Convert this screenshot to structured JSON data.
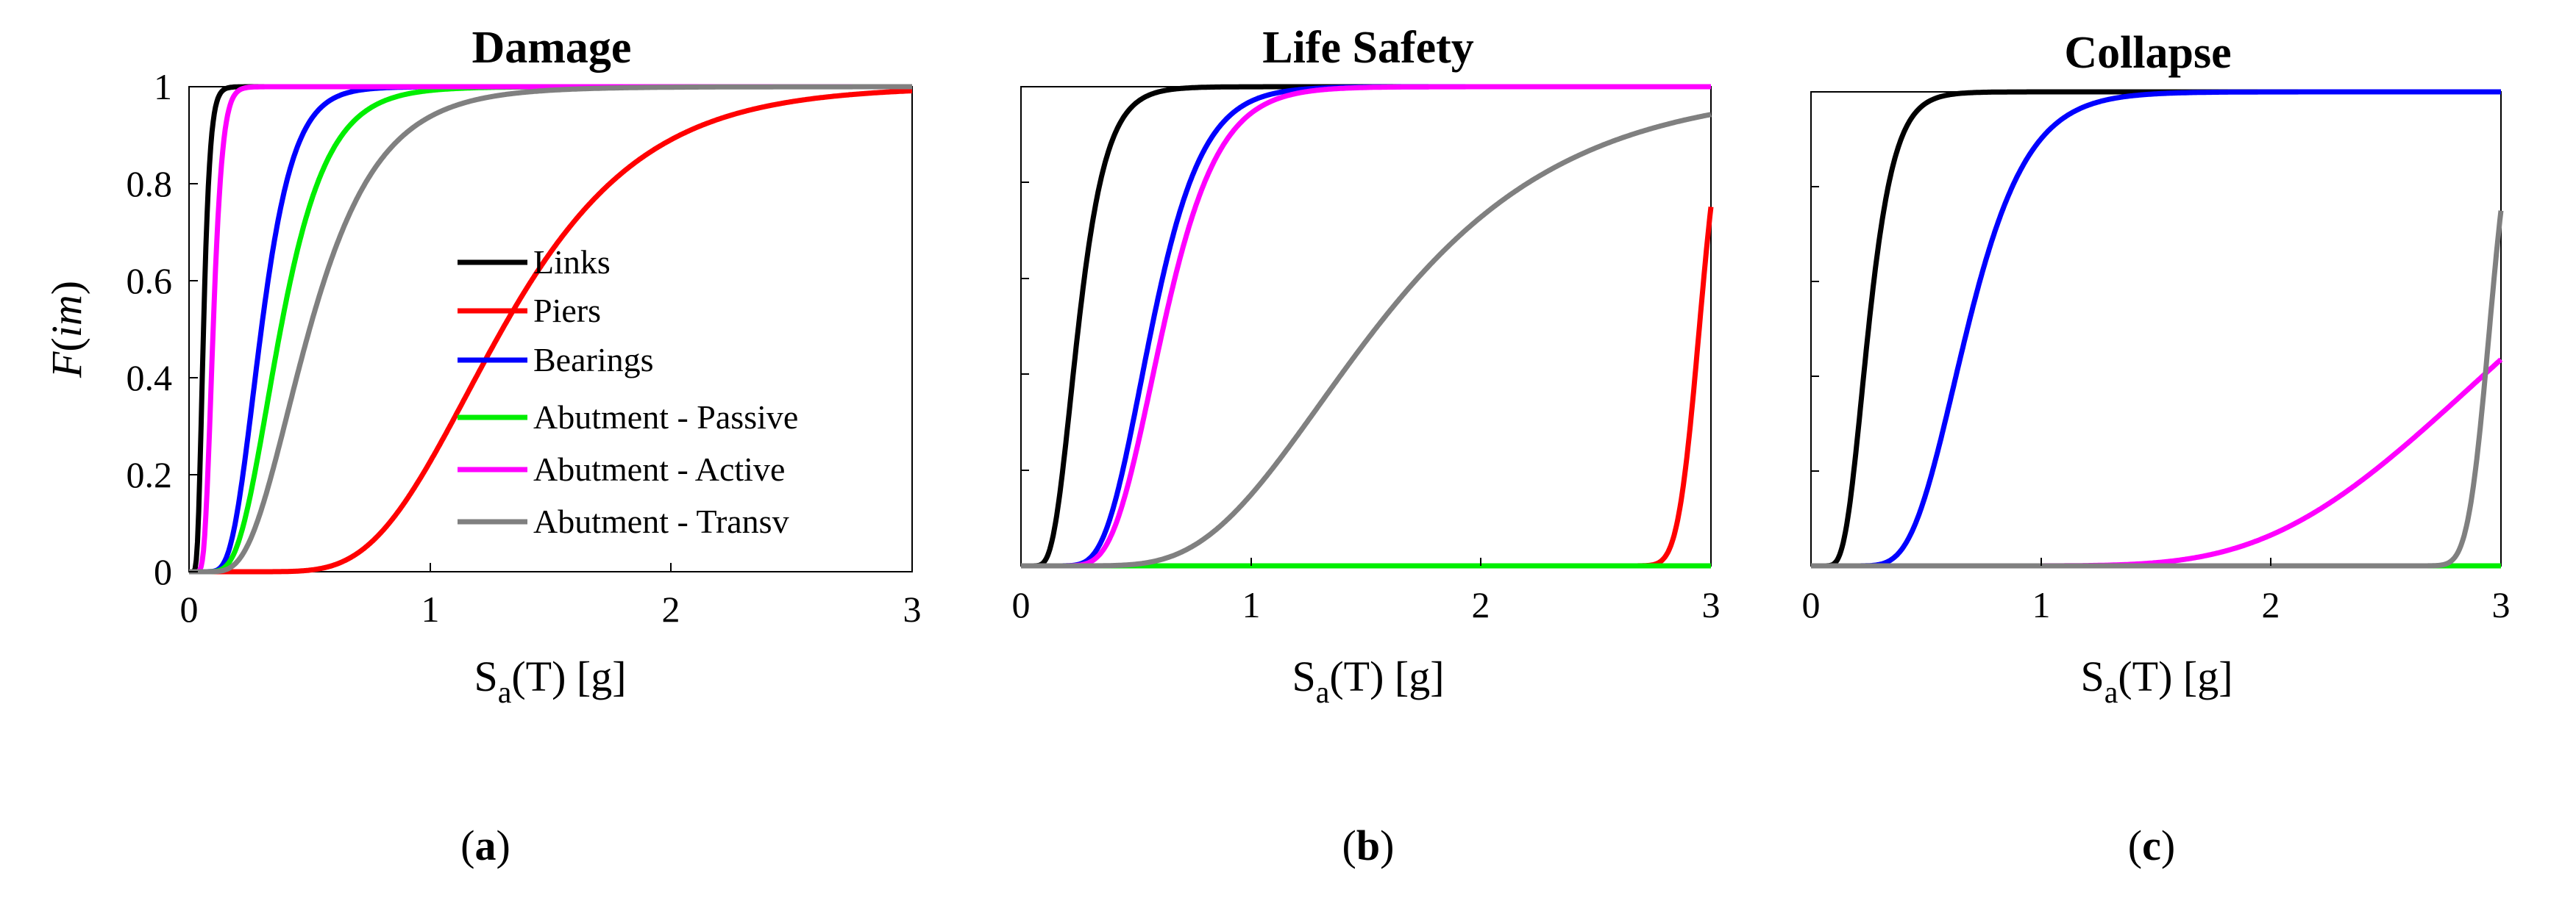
{
  "figure": {
    "subfigure_labels": [
      {
        "open": "(",
        "letter": "a",
        "close": ")"
      },
      {
        "open": "(",
        "letter": "b",
        "close": ")"
      },
      {
        "open": "(",
        "letter": "c",
        "close": ")"
      }
    ]
  },
  "legend": {
    "entries": [
      "Links",
      "Piers",
      "Bearings",
      "Abutment - Passive",
      "Abutment - Active",
      "Abutment - Transv"
    ]
  },
  "chart_data": [
    {
      "type": "line",
      "title": "Damage",
      "xlabel": {
        "base": "S",
        "sub": "a",
        "rest": "(T) [g]"
      },
      "ylabel": {
        "italic": "F",
        "text": "(",
        "italic2": "im",
        "close": ")"
      },
      "xlim": [
        0,
        3
      ],
      "ylim": [
        0,
        1
      ],
      "xticks": [
        "0",
        "1",
        "2",
        "3"
      ],
      "yticks": [
        "0",
        "0.2",
        "0.4",
        "0.6",
        "0.8",
        "1"
      ],
      "series": [
        {
          "name": "Links",
          "color": "#000000",
          "median": 0.06,
          "beta": 0.35
        },
        {
          "name": "Piers",
          "color": "#ff0000",
          "median": 1.3,
          "beta": 0.35
        },
        {
          "name": "Bearings",
          "color": "#0000ff",
          "median": 0.3,
          "beta": 0.35
        },
        {
          "name": "Abutment - Passive",
          "color": "#00ee00",
          "median": 0.38,
          "beta": 0.4
        },
        {
          "name": "Abutment - Active",
          "color": "#ff00ff",
          "median": 0.1,
          "beta": 0.3
        },
        {
          "name": "Abutment - Transv",
          "color": "#808080",
          "median": 0.5,
          "beta": 0.45
        }
      ]
    },
    {
      "type": "line",
      "title": "Life Safety",
      "xlabel": {
        "base": "S",
        "sub": "a",
        "rest": "(T) [g]"
      },
      "xlim": [
        0,
        3
      ],
      "ylim": [
        0,
        1
      ],
      "xticks": [
        "0",
        "1",
        "2",
        "3"
      ],
      "series": [
        {
          "name": "Links",
          "color": "#000000",
          "median": 0.25,
          "beta": 0.38
        },
        {
          "name": "Piers",
          "color": "#ff0000",
          "median": 2.95,
          "beta": 0.025
        },
        {
          "name": "Bearings",
          "color": "#0000ff",
          "median": 0.57,
          "beta": 0.3
        },
        {
          "name": "Abutment - Passive",
          "color": "#00ee00",
          "median": 50,
          "beta": 0.3
        },
        {
          "name": "Abutment - Active",
          "color": "#ff00ff",
          "median": 0.62,
          "beta": 0.3
        },
        {
          "name": "Abutment - Transv",
          "color": "#808080",
          "median": 1.55,
          "beta": 0.42
        }
      ]
    },
    {
      "type": "line",
      "title": "Collapse",
      "xlabel": {
        "base": "S",
        "sub": "a",
        "rest": "(T) [g]"
      },
      "xlim": [
        0,
        3
      ],
      "ylim": [
        0,
        1
      ],
      "xticks": [
        "0",
        "1",
        "2",
        "3"
      ],
      "series": [
        {
          "name": "Links",
          "color": "#000000",
          "median": 0.25,
          "beta": 0.35
        },
        {
          "name": "Piers",
          "color": "#ff0000",
          "median": 50,
          "beta": 0.3
        },
        {
          "name": "Bearings",
          "color": "#0000ff",
          "median": 0.68,
          "beta": 0.3
        },
        {
          "name": "Abutment - Passive",
          "color": "#00ee00",
          "median": 50,
          "beta": 0.3
        },
        {
          "name": "Abutment - Active",
          "color": "#ff00ff",
          "median": 3.15,
          "beta": 0.3
        },
        {
          "name": "Abutment - Transv",
          "color": "#808080",
          "median": 2.95,
          "beta": 0.025
        }
      ]
    }
  ]
}
